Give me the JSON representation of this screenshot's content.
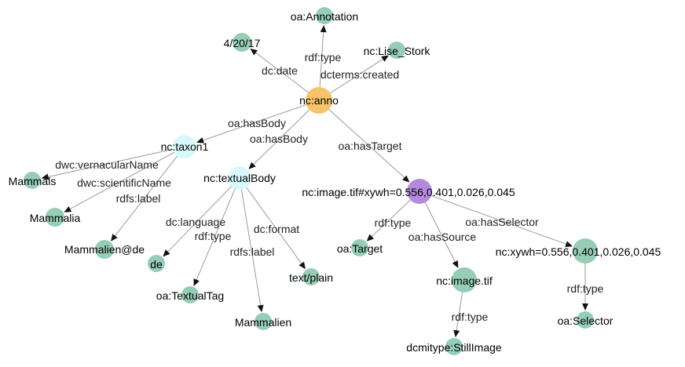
{
  "colors": {
    "literal": "#95cdb7",
    "root": "#f5c36a",
    "selected": "#b48ae0",
    "body": "#d8f8fb",
    "edge": "#9a9a9a",
    "arrow": "#111111"
  },
  "nodes": [
    {
      "id": "anno",
      "label": "nc:anno",
      "kind": "root"
    },
    {
      "id": "annotation",
      "label": "oa:Annotation",
      "kind": "literal"
    },
    {
      "id": "date",
      "label": "4/20/17",
      "kind": "literal"
    },
    {
      "id": "lise",
      "label": "nc:Lise_Stork",
      "kind": "literal"
    },
    {
      "id": "taxon1",
      "label": "nc:taxon1",
      "kind": "body"
    },
    {
      "id": "mammals",
      "label": "Mammals",
      "kind": "literal"
    },
    {
      "id": "mammalia",
      "label": "Mammalia",
      "kind": "literal"
    },
    {
      "id": "mammaliende",
      "label": "Mammalien@de",
      "kind": "literal"
    },
    {
      "id": "textual",
      "label": "nc:textualBody",
      "kind": "body"
    },
    {
      "id": "de",
      "label": "de",
      "kind": "literal"
    },
    {
      "id": "textualtag",
      "label": "oa:TextualTag",
      "kind": "literal"
    },
    {
      "id": "mammalien",
      "label": "Mammalien",
      "kind": "literal"
    },
    {
      "id": "textplain",
      "label": "text/plain",
      "kind": "literal"
    },
    {
      "id": "imagexy",
      "label": "nc:image.tif#xywh=0.556,0.401,0.026,0.045",
      "kind": "selected"
    },
    {
      "id": "target",
      "label": "oa:Target",
      "kind": "literal"
    },
    {
      "id": "imagetif",
      "label": "nc:image.tif",
      "kind": "literal"
    },
    {
      "id": "stillimage",
      "label": "dcmitype:StillImage",
      "kind": "literal"
    },
    {
      "id": "xywh",
      "label": "nc:xywh=0.556,0.401,0.026,0.045",
      "kind": "literal"
    },
    {
      "id": "selector",
      "label": "oa:Selector",
      "kind": "literal"
    }
  ],
  "edges": [
    {
      "from": "anno",
      "to": "annotation",
      "label": "rdf:type"
    },
    {
      "from": "anno",
      "to": "date",
      "label": "dc:date"
    },
    {
      "from": "anno",
      "to": "lise",
      "label": "dcterms:created"
    },
    {
      "from": "anno",
      "to": "taxon1",
      "label": "oa:hasBody"
    },
    {
      "from": "anno",
      "to": "textual",
      "label": "oa:hasBody"
    },
    {
      "from": "anno",
      "to": "imagexy",
      "label": "oa:hasTarget"
    },
    {
      "from": "taxon1",
      "to": "mammals",
      "label": "dwc:vernacularName"
    },
    {
      "from": "taxon1",
      "to": "mammalia",
      "label": "dwc:scientificName"
    },
    {
      "from": "taxon1",
      "to": "mammaliende",
      "label": "rdfs:label"
    },
    {
      "from": "textual",
      "to": "de",
      "label": "dc:language"
    },
    {
      "from": "textual",
      "to": "textualtag",
      "label": "rdf:type"
    },
    {
      "from": "textual",
      "to": "mammalien",
      "label": "rdfs:label"
    },
    {
      "from": "textual",
      "to": "textplain",
      "label": "dc:format"
    },
    {
      "from": "imagexy",
      "to": "target",
      "label": "rdf:type"
    },
    {
      "from": "imagexy",
      "to": "imagetif",
      "label": "oa:hasSource"
    },
    {
      "from": "imagexy",
      "to": "xywh",
      "label": "oa:hasSelector"
    },
    {
      "from": "imagetif",
      "to": "stillimage",
      "label": "rdf:type"
    },
    {
      "from": "xywh",
      "to": "selector",
      "label": "rdf:type"
    }
  ]
}
